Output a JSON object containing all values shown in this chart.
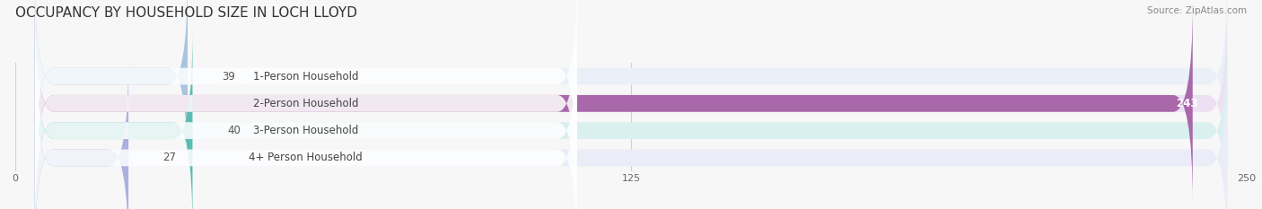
{
  "title": "OCCUPANCY BY HOUSEHOLD SIZE IN LOCH LLOYD",
  "source": "Source: ZipAtlas.com",
  "categories": [
    "1-Person Household",
    "2-Person Household",
    "3-Person Household",
    "4+ Person Household"
  ],
  "values": [
    39,
    243,
    40,
    27
  ],
  "bar_colors": [
    "#a8c4e0",
    "#a868aa",
    "#5bbcb0",
    "#aab0e0"
  ],
  "bar_background_colors": [
    "#eaeff8",
    "#ede0f2",
    "#daf0ee",
    "#eaecf8"
  ],
  "xlim": [
    0,
    250
  ],
  "xticks": [
    0,
    125,
    250
  ],
  "title_fontsize": 11,
  "label_fontsize": 8.5,
  "value_fontsize": 8.5,
  "source_fontsize": 7.5,
  "background_color": "#f7f7f7"
}
